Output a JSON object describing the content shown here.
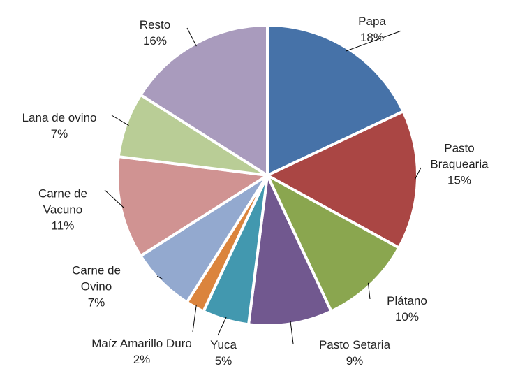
{
  "chart_data": {
    "type": "pie",
    "categories": [
      "Papa",
      "Pasto Braquearia",
      "Plátano",
      "Pasto Setaria",
      "Yuca",
      "Maíz Amarillo Duro",
      "Carne de Ovino",
      "Carne de Vacuno",
      "Lana de ovino",
      "Resto"
    ],
    "values": [
      18,
      15,
      10,
      9,
      5,
      2,
      7,
      11,
      7,
      16
    ],
    "value_labels": [
      "18%",
      "15%",
      "10%",
      "9%",
      "5%",
      "2%",
      "7%",
      "11%",
      "7%",
      "16%"
    ],
    "colors": [
      "#4672a8",
      "#aa4644",
      "#8aa64f",
      "#71588f",
      "#4298af",
      "#db843d",
      "#93a9cf",
      "#d09392",
      "#b9cd96",
      "#a99bbd"
    ]
  }
}
